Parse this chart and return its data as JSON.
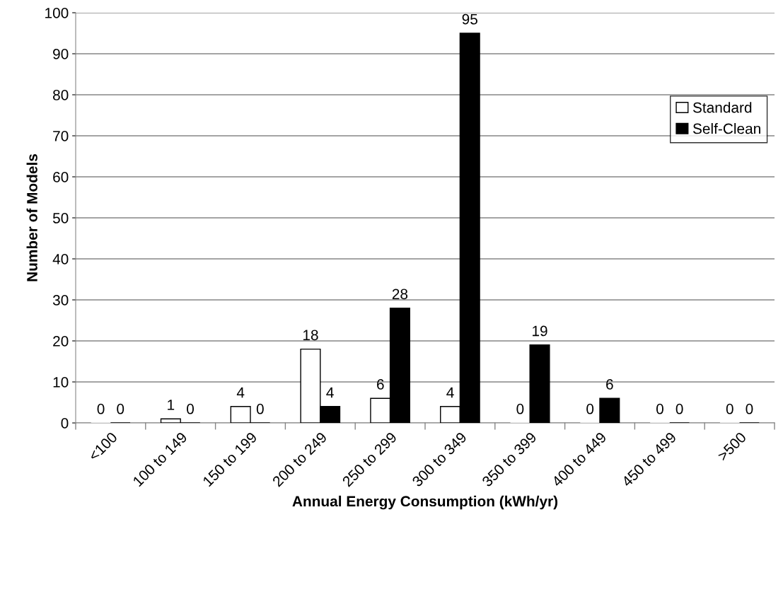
{
  "chart_data": {
    "type": "bar",
    "xlabel": "Annual Energy Consumption (kWh/yr)",
    "ylabel": "Number of Models",
    "categories": [
      "<100",
      "100 to 149",
      "150 to 199",
      "200 to 249",
      "250 to 299",
      "300 to 349",
      "350 to 399",
      "400 to 449",
      "450 to 499",
      ">500"
    ],
    "series": [
      {
        "name": "Standard",
        "color": "#ffffff",
        "values": [
          0,
          1,
          4,
          18,
          6,
          4,
          0,
          0,
          0,
          0
        ]
      },
      {
        "name": "Self-Clean",
        "color": "#000000",
        "values": [
          0,
          0,
          0,
          4,
          28,
          95,
          19,
          6,
          0,
          0
        ]
      }
    ],
    "ylim": [
      0,
      100
    ],
    "yticks": [
      0,
      10,
      20,
      30,
      40,
      50,
      60,
      70,
      80,
      90,
      100
    ],
    "grid": "y",
    "legend": "right",
    "data_labels": true
  }
}
